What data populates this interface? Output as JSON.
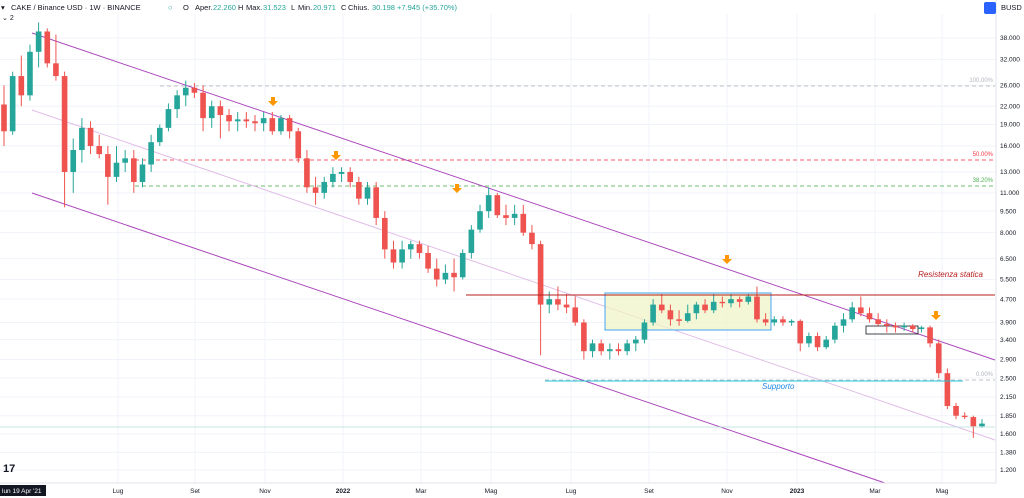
{
  "header": {
    "symbol": "CAKE / Binance USD · 1W · BINANCE",
    "ohlc_open_label": "O",
    "ohlc": "Aper.",
    "open": "22.260",
    "high_label": "H",
    "high_word": "Max.",
    "high": "31.523",
    "low_label": "L",
    "low_word": "Min.",
    "low": "20.971",
    "close_label": "C",
    "close_word": "Chius.",
    "close": "30.198",
    "change": "+7.945 (+35.70%)",
    "currency": "BUSD",
    "indicator_count": "2"
  },
  "chart_data": {
    "type": "candlestick",
    "y_scale": "log",
    "y_ticks": [
      "38.000",
      "32.000",
      "26.000",
      "22.000",
      "19.000",
      "16.000",
      "13.000",
      "11.000",
      "9.500",
      "8.000",
      "6.500",
      "5.500",
      "4.700",
      "3.900",
      "3.400",
      "2.900",
      "2.500",
      "2.150",
      "1.850",
      "1.600",
      "1.380",
      "1.200"
    ],
    "x_labels": [
      "lun 19 Apr '21",
      "Lug",
      "Set",
      "Nov",
      "2022",
      "Mar",
      "Mag",
      "Lug",
      "Set",
      "Nov",
      "2023",
      "Mar",
      "Mag"
    ],
    "current_price": "1.737",
    "resistance_price": "4.971",
    "fib_levels": [
      {
        "label": "100.00%",
        "color": "#b2b5be"
      },
      {
        "label": "50.00%",
        "color": "#f23645"
      },
      {
        "label": "38.20%",
        "color": "#4caf50"
      },
      {
        "label": "0.00%",
        "color": "#b2b5be"
      }
    ],
    "annotations": {
      "resistance": "Resistenza statica",
      "support": "Supporto"
    },
    "colors": {
      "up": "#26a69a",
      "down": "#ef5350",
      "channel": "#ab47bc",
      "resistance": "#b71c1c",
      "support": "#26c6da",
      "arrow": "#ff9800"
    },
    "candles": [
      {
        "o": 22.3,
        "h": 26.0,
        "l": 16.0,
        "c": 18.0
      },
      {
        "o": 18.0,
        "h": 29.0,
        "l": 17.5,
        "c": 28.0
      },
      {
        "o": 28.0,
        "h": 33.0,
        "l": 22.0,
        "c": 24.0
      },
      {
        "o": 24.0,
        "h": 36.0,
        "l": 23.0,
        "c": 34.0
      },
      {
        "o": 34.0,
        "h": 43.0,
        "l": 30.0,
        "c": 40.0
      },
      {
        "o": 40.0,
        "h": 41.0,
        "l": 30.0,
        "c": 31.0
      },
      {
        "o": 31.0,
        "h": 39.0,
        "l": 27.0,
        "c": 28.0
      },
      {
        "o": 28.0,
        "h": 29.0,
        "l": 9.8,
        "c": 13.0
      },
      {
        "o": 13.0,
        "h": 17.0,
        "l": 11.0,
        "c": 15.5
      },
      {
        "o": 15.5,
        "h": 20.0,
        "l": 14.0,
        "c": 18.5
      },
      {
        "o": 18.5,
        "h": 19.5,
        "l": 15.0,
        "c": 16.0
      },
      {
        "o": 16.0,
        "h": 17.5,
        "l": 14.5,
        "c": 15.0
      },
      {
        "o": 15.0,
        "h": 16.0,
        "l": 10.0,
        "c": 12.5
      },
      {
        "o": 12.5,
        "h": 16.0,
        "l": 12.0,
        "c": 14.0
      },
      {
        "o": 14.0,
        "h": 15.5,
        "l": 13.0,
        "c": 14.5
      },
      {
        "o": 14.5,
        "h": 15.5,
        "l": 11.0,
        "c": 12.0
      },
      {
        "o": 12.0,
        "h": 14.5,
        "l": 11.5,
        "c": 13.8
      },
      {
        "o": 13.8,
        "h": 17.5,
        "l": 13.0,
        "c": 16.5
      },
      {
        "o": 16.5,
        "h": 19.0,
        "l": 16.0,
        "c": 18.5
      },
      {
        "o": 18.5,
        "h": 22.5,
        "l": 18.0,
        "c": 21.5
      },
      {
        "o": 21.5,
        "h": 25.0,
        "l": 20.0,
        "c": 24.0
      },
      {
        "o": 24.0,
        "h": 27.0,
        "l": 22.0,
        "c": 25.5
      },
      {
        "o": 25.5,
        "h": 26.5,
        "l": 23.5,
        "c": 24.5
      },
      {
        "o": 24.5,
        "h": 26.0,
        "l": 18.0,
        "c": 20.0
      },
      {
        "o": 20.0,
        "h": 23.0,
        "l": 18.5,
        "c": 22.0
      },
      {
        "o": 22.0,
        "h": 23.0,
        "l": 17.0,
        "c": 20.5
      },
      {
        "o": 20.5,
        "h": 21.5,
        "l": 18.0,
        "c": 19.5
      },
      {
        "o": 19.5,
        "h": 21.0,
        "l": 18.0,
        "c": 19.8
      },
      {
        "o": 19.8,
        "h": 21.0,
        "l": 18.5,
        "c": 19.5
      },
      {
        "o": 19.5,
        "h": 20.5,
        "l": 18.0,
        "c": 19.2
      },
      {
        "o": 19.2,
        "h": 21.0,
        "l": 18.0,
        "c": 20.0
      },
      {
        "o": 20.0,
        "h": 21.0,
        "l": 17.5,
        "c": 18.0
      },
      {
        "o": 18.0,
        "h": 20.5,
        "l": 17.5,
        "c": 20.0
      },
      {
        "o": 20.0,
        "h": 20.5,
        "l": 17.0,
        "c": 18.0
      },
      {
        "o": 18.0,
        "h": 18.5,
        "l": 14.0,
        "c": 14.5
      },
      {
        "o": 14.5,
        "h": 15.5,
        "l": 11.0,
        "c": 11.5
      },
      {
        "o": 11.5,
        "h": 12.5,
        "l": 10.0,
        "c": 11.0
      },
      {
        "o": 11.0,
        "h": 12.5,
        "l": 10.5,
        "c": 12.0
      },
      {
        "o": 12.0,
        "h": 13.5,
        "l": 11.5,
        "c": 12.8
      },
      {
        "o": 12.8,
        "h": 13.5,
        "l": 12.0,
        "c": 13.0
      },
      {
        "o": 13.0,
        "h": 13.5,
        "l": 11.5,
        "c": 12.0
      },
      {
        "o": 12.0,
        "h": 12.5,
        "l": 10.0,
        "c": 10.5
      },
      {
        "o": 10.5,
        "h": 12.0,
        "l": 10.0,
        "c": 11.5
      },
      {
        "o": 11.5,
        "h": 12.0,
        "l": 8.5,
        "c": 9.0
      },
      {
        "o": 9.0,
        "h": 9.5,
        "l": 6.5,
        "c": 7.0
      },
      {
        "o": 7.0,
        "h": 7.5,
        "l": 6.0,
        "c": 6.3
      },
      {
        "o": 6.3,
        "h": 7.5,
        "l": 6.0,
        "c": 7.0
      },
      {
        "o": 7.0,
        "h": 7.5,
        "l": 6.5,
        "c": 7.3
      },
      {
        "o": 7.3,
        "h": 7.5,
        "l": 6.5,
        "c": 6.8
      },
      {
        "o": 6.8,
        "h": 7.2,
        "l": 5.8,
        "c": 6.0
      },
      {
        "o": 6.0,
        "h": 6.5,
        "l": 5.2,
        "c": 5.5
      },
      {
        "o": 5.5,
        "h": 6.2,
        "l": 5.3,
        "c": 5.8
      },
      {
        "o": 5.8,
        "h": 6.5,
        "l": 5.0,
        "c": 5.6
      },
      {
        "o": 5.6,
        "h": 7.0,
        "l": 5.5,
        "c": 6.8
      },
      {
        "o": 6.8,
        "h": 8.5,
        "l": 6.5,
        "c": 8.2
      },
      {
        "o": 8.2,
        "h": 10.0,
        "l": 8.0,
        "c": 9.5
      },
      {
        "o": 9.5,
        "h": 11.5,
        "l": 9.0,
        "c": 10.8
      },
      {
        "o": 10.8,
        "h": 11.0,
        "l": 9.0,
        "c": 9.2
      },
      {
        "o": 9.2,
        "h": 10.0,
        "l": 8.5,
        "c": 9.0
      },
      {
        "o": 9.0,
        "h": 10.0,
        "l": 8.5,
        "c": 9.3
      },
      {
        "o": 9.3,
        "h": 10.0,
        "l": 7.8,
        "c": 8.0
      },
      {
        "o": 8.0,
        "h": 8.5,
        "l": 7.0,
        "c": 7.3
      },
      {
        "o": 7.3,
        "h": 7.5,
        "l": 3.0,
        "c": 4.5
      },
      {
        "o": 4.5,
        "h": 5.0,
        "l": 4.2,
        "c": 4.7
      },
      {
        "o": 4.7,
        "h": 5.2,
        "l": 4.3,
        "c": 4.5
      },
      {
        "o": 4.5,
        "h": 4.9,
        "l": 4.2,
        "c": 4.4
      },
      {
        "o": 4.4,
        "h": 4.8,
        "l": 3.8,
        "c": 3.9
      },
      {
        "o": 3.9,
        "h": 4.0,
        "l": 2.9,
        "c": 3.1
      },
      {
        "o": 3.1,
        "h": 3.4,
        "l": 2.95,
        "c": 3.3
      },
      {
        "o": 3.3,
        "h": 3.4,
        "l": 3.0,
        "c": 3.1
      },
      {
        "o": 3.1,
        "h": 3.3,
        "l": 2.9,
        "c": 3.15
      },
      {
        "o": 3.15,
        "h": 3.3,
        "l": 3.0,
        "c": 3.1
      },
      {
        "o": 3.1,
        "h": 3.4,
        "l": 3.0,
        "c": 3.3
      },
      {
        "o": 3.3,
        "h": 3.5,
        "l": 3.1,
        "c": 3.4
      },
      {
        "o": 3.4,
        "h": 4.0,
        "l": 3.3,
        "c": 3.9
      },
      {
        "o": 3.9,
        "h": 4.7,
        "l": 3.8,
        "c": 4.5
      },
      {
        "o": 4.5,
        "h": 4.9,
        "l": 4.2,
        "c": 4.3
      },
      {
        "o": 4.3,
        "h": 4.5,
        "l": 3.8,
        "c": 4.0
      },
      {
        "o": 4.0,
        "h": 4.3,
        "l": 3.8,
        "c": 3.95
      },
      {
        "o": 3.95,
        "h": 4.5,
        "l": 3.9,
        "c": 4.2
      },
      {
        "o": 4.2,
        "h": 4.6,
        "l": 4.0,
        "c": 4.5
      },
      {
        "o": 4.5,
        "h": 4.7,
        "l": 4.2,
        "c": 4.3
      },
      {
        "o": 4.3,
        "h": 4.9,
        "l": 4.2,
        "c": 4.6
      },
      {
        "o": 4.6,
        "h": 4.8,
        "l": 4.4,
        "c": 4.55
      },
      {
        "o": 4.55,
        "h": 4.9,
        "l": 4.4,
        "c": 4.7
      },
      {
        "o": 4.7,
        "h": 4.8,
        "l": 4.4,
        "c": 4.6
      },
      {
        "o": 4.6,
        "h": 4.9,
        "l": 4.5,
        "c": 4.8
      },
      {
        "o": 4.8,
        "h": 5.2,
        "l": 3.9,
        "c": 4.0
      },
      {
        "o": 4.0,
        "h": 4.2,
        "l": 3.8,
        "c": 3.9
      },
      {
        "o": 3.9,
        "h": 4.1,
        "l": 3.8,
        "c": 4.0
      },
      {
        "o": 4.0,
        "h": 4.1,
        "l": 3.8,
        "c": 3.9
      },
      {
        "o": 3.9,
        "h": 4.0,
        "l": 3.8,
        "c": 3.95
      },
      {
        "o": 3.95,
        "h": 4.0,
        "l": 3.1,
        "c": 3.3
      },
      {
        "o": 3.3,
        "h": 3.6,
        "l": 3.2,
        "c": 3.5
      },
      {
        "o": 3.5,
        "h": 3.6,
        "l": 3.1,
        "c": 3.2
      },
      {
        "o": 3.2,
        "h": 3.5,
        "l": 3.15,
        "c": 3.4
      },
      {
        "o": 3.4,
        "h": 3.9,
        "l": 3.3,
        "c": 3.8
      },
      {
        "o": 3.8,
        "h": 4.2,
        "l": 3.6,
        "c": 4.0
      },
      {
        "o": 4.0,
        "h": 4.6,
        "l": 3.9,
        "c": 4.4
      },
      {
        "o": 4.4,
        "h": 4.8,
        "l": 4.1,
        "c": 4.2
      },
      {
        "o": 4.2,
        "h": 4.4,
        "l": 3.9,
        "c": 4.0
      },
      {
        "o": 4.0,
        "h": 4.2,
        "l": 3.8,
        "c": 3.85
      },
      {
        "o": 3.85,
        "h": 4.0,
        "l": 3.6,
        "c": 3.8
      },
      {
        "o": 3.8,
        "h": 3.9,
        "l": 3.6,
        "c": 3.75
      },
      {
        "o": 3.75,
        "h": 3.9,
        "l": 3.65,
        "c": 3.8
      },
      {
        "o": 3.8,
        "h": 3.85,
        "l": 3.6,
        "c": 3.7
      },
      {
        "o": 3.7,
        "h": 3.8,
        "l": 3.6,
        "c": 3.75
      },
      {
        "o": 3.75,
        "h": 3.8,
        "l": 3.2,
        "c": 3.3
      },
      {
        "o": 3.3,
        "h": 3.4,
        "l": 2.5,
        "c": 2.6
      },
      {
        "o": 2.6,
        "h": 2.7,
        "l": 1.95,
        "c": 2.0
      },
      {
        "o": 2.0,
        "h": 2.05,
        "l": 1.8,
        "c": 1.85
      },
      {
        "o": 1.85,
        "h": 1.9,
        "l": 1.8,
        "c": 1.83
      },
      {
        "o": 1.83,
        "h": 1.85,
        "l": 1.55,
        "c": 1.7
      },
      {
        "o": 1.7,
        "h": 1.8,
        "l": 1.68,
        "c": 1.737
      }
    ]
  }
}
